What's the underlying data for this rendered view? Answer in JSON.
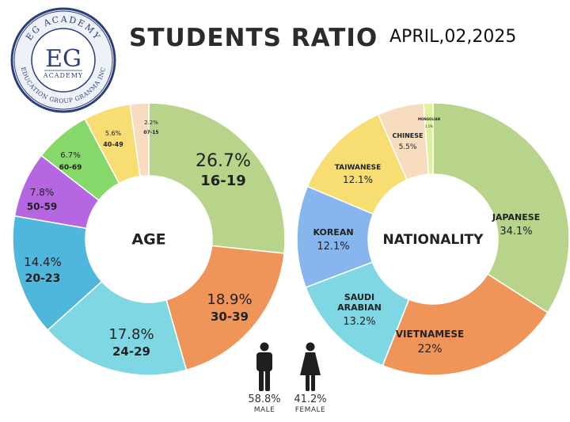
{
  "header": {
    "title": "STUDENTS RATIO",
    "date": "APRIL,02,2025"
  },
  "logo": {
    "initials": "EG",
    "word": "ACADEMY",
    "ring_top": "EG ACADEMY",
    "ring_bottom": "EDUCATION GROUP GRANMA INC"
  },
  "chart_data": [
    {
      "type": "pie",
      "center_label": "AGE",
      "slices": [
        {
          "label": "16-19",
          "value": 26.7,
          "display": "26.7%",
          "color": "#b7d48a"
        },
        {
          "label": "30-39",
          "value": 18.9,
          "display": "18.9%",
          "color": "#f0955a"
        },
        {
          "label": "24-29",
          "value": 17.8,
          "display": "17.8%",
          "color": "#7ed7e3"
        },
        {
          "label": "20-23",
          "value": 14.4,
          "display": "14.4%",
          "color": "#4fb6dc"
        },
        {
          "label": "50-59",
          "value": 7.8,
          "display": "7.8%",
          "color": "#b567e2"
        },
        {
          "label": "60-69",
          "value": 6.7,
          "display": "6.7%",
          "color": "#86d86a"
        },
        {
          "label": "40-49",
          "value": 5.6,
          "display": "5.6%",
          "color": "#f8dd73"
        },
        {
          "label": "07-15",
          "value": 2.2,
          "display": "2.2%",
          "color": "#f7dcc0"
        }
      ]
    },
    {
      "type": "pie",
      "center_label": "NATIONALITY",
      "slices": [
        {
          "label": "JAPANESE",
          "value": 34.1,
          "display": "34.1%",
          "color": "#b7d48a"
        },
        {
          "label": "VIETNAMESE",
          "value": 22,
          "display": "22%",
          "color": "#f0955a"
        },
        {
          "label": "SAUDI ARABIAN",
          "value": 13.2,
          "display": "13.2%",
          "color": "#7ed7e3"
        },
        {
          "label": "KOREAN",
          "value": 12.1,
          "display": "12.1%",
          "color": "#87b6ef"
        },
        {
          "label": "TAIWANESE",
          "value": 12.1,
          "display": "12.1%",
          "color": "#f8dd73"
        },
        {
          "label": "CHINESE",
          "value": 5.5,
          "display": "5.5%",
          "color": "#f7dcc0"
        },
        {
          "label": "MONGOLIAN",
          "value": 1.1,
          "display": "1.1%",
          "color": "#dff29a"
        }
      ]
    }
  ],
  "gender": {
    "male": {
      "pct": "58.8%",
      "label": "MALE"
    },
    "female": {
      "pct": "41.2%",
      "label": "FEMALE"
    }
  }
}
